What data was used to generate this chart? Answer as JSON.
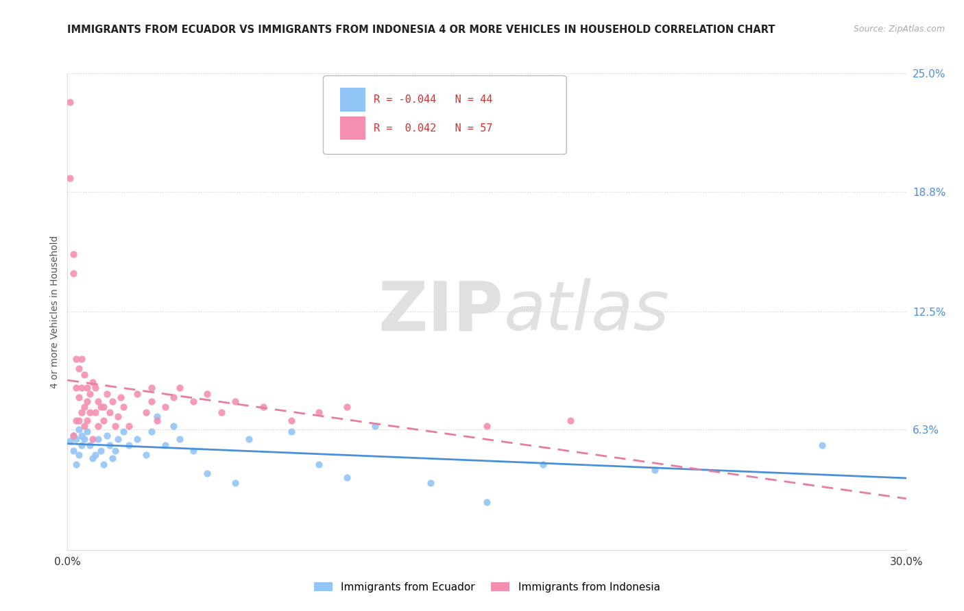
{
  "title": "IMMIGRANTS FROM ECUADOR VS IMMIGRANTS FROM INDONESIA 4 OR MORE VEHICLES IN HOUSEHOLD CORRELATION CHART",
  "source": "Source: ZipAtlas.com",
  "ylabel": "4 or more Vehicles in Household",
  "xlim": [
    0.0,
    0.3
  ],
  "ylim": [
    0.0,
    0.25
  ],
  "ytick_labels_right": [
    "25.0%",
    "18.8%",
    "12.5%",
    "6.3%"
  ],
  "ytick_positions_right": [
    0.25,
    0.188,
    0.125,
    0.063
  ],
  "ecuador_color": "#92c5f7",
  "indonesia_color": "#f48fb1",
  "ecuador_R": -0.044,
  "ecuador_N": 44,
  "indonesia_R": 0.042,
  "indonesia_N": 57,
  "legend_label_ecuador": "Immigrants from Ecuador",
  "legend_label_indonesia": "Immigrants from Indonesia",
  "watermark_zip": "ZIP",
  "watermark_atlas": "atlas",
  "ecuador_scatter_x": [
    0.001,
    0.002,
    0.002,
    0.003,
    0.003,
    0.004,
    0.004,
    0.005,
    0.005,
    0.006,
    0.007,
    0.008,
    0.009,
    0.01,
    0.011,
    0.012,
    0.013,
    0.014,
    0.015,
    0.016,
    0.017,
    0.018,
    0.02,
    0.022,
    0.025,
    0.028,
    0.03,
    0.032,
    0.035,
    0.038,
    0.04,
    0.045,
    0.05,
    0.06,
    0.065,
    0.08,
    0.09,
    0.1,
    0.11,
    0.13,
    0.15,
    0.17,
    0.21,
    0.27
  ],
  "ecuador_scatter_y": [
    0.057,
    0.052,
    0.06,
    0.045,
    0.058,
    0.05,
    0.063,
    0.055,
    0.06,
    0.058,
    0.062,
    0.055,
    0.048,
    0.05,
    0.058,
    0.052,
    0.045,
    0.06,
    0.055,
    0.048,
    0.052,
    0.058,
    0.062,
    0.055,
    0.058,
    0.05,
    0.062,
    0.07,
    0.055,
    0.065,
    0.058,
    0.052,
    0.04,
    0.035,
    0.058,
    0.062,
    0.045,
    0.038,
    0.065,
    0.035,
    0.025,
    0.045,
    0.042,
    0.055
  ],
  "indonesia_scatter_x": [
    0.001,
    0.001,
    0.002,
    0.002,
    0.002,
    0.003,
    0.003,
    0.003,
    0.004,
    0.004,
    0.004,
    0.005,
    0.005,
    0.005,
    0.006,
    0.006,
    0.006,
    0.007,
    0.007,
    0.007,
    0.008,
    0.008,
    0.009,
    0.009,
    0.01,
    0.01,
    0.011,
    0.011,
    0.012,
    0.013,
    0.013,
    0.014,
    0.015,
    0.016,
    0.017,
    0.018,
    0.019,
    0.02,
    0.022,
    0.025,
    0.028,
    0.03,
    0.03,
    0.032,
    0.035,
    0.038,
    0.04,
    0.045,
    0.05,
    0.055,
    0.06,
    0.07,
    0.08,
    0.09,
    0.1,
    0.15,
    0.18
  ],
  "indonesia_scatter_y": [
    0.235,
    0.195,
    0.155,
    0.145,
    0.06,
    0.085,
    0.1,
    0.068,
    0.08,
    0.095,
    0.068,
    0.085,
    0.1,
    0.072,
    0.075,
    0.092,
    0.065,
    0.085,
    0.078,
    0.068,
    0.082,
    0.072,
    0.088,
    0.058,
    0.072,
    0.085,
    0.078,
    0.065,
    0.075,
    0.068,
    0.075,
    0.082,
    0.072,
    0.078,
    0.065,
    0.07,
    0.08,
    0.075,
    0.065,
    0.082,
    0.072,
    0.078,
    0.085,
    0.068,
    0.075,
    0.08,
    0.085,
    0.078,
    0.082,
    0.072,
    0.078,
    0.075,
    0.068,
    0.072,
    0.075,
    0.065,
    0.068
  ]
}
